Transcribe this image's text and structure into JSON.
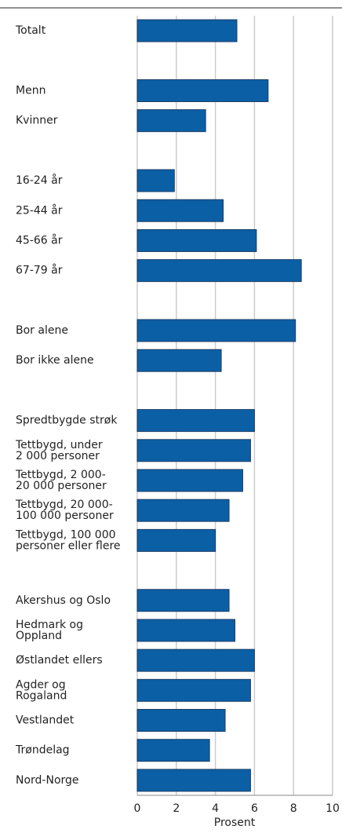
{
  "chart_data": {
    "type": "barh",
    "categories": [
      "Totalt",
      null,
      "Menn",
      "Kvinner",
      null,
      "16-24 år",
      "25-44 år",
      "45-66 år",
      "67-79 år",
      null,
      "Bor alene",
      "Bor ikke alene",
      null,
      "Spredtbygde strøk",
      "Tettbygd, under\n2 000 personer",
      "Tettbygd, 2 000-\n20 000 personer",
      "Tettbygd, 20 000-\n100 000 personer",
      "Tettbygd, 100 000\npersoner eller flere",
      null,
      "Akershus og Oslo",
      "Hedmark og\nOppland",
      "Østlandet ellers",
      "Agder og\nRogaland",
      "Vestlandet",
      "Trøndelag",
      "Nord-Norge"
    ],
    "values": [
      5.1,
      null,
      6.7,
      3.5,
      null,
      1.9,
      4.4,
      6.1,
      8.4,
      null,
      8.1,
      4.3,
      null,
      6.0,
      5.8,
      5.4,
      4.7,
      4.0,
      null,
      4.7,
      5.0,
      6.0,
      5.8,
      4.5,
      3.7,
      5.8
    ],
    "color": "#0b5fa5",
    "xlim": [
      0,
      10
    ],
    "xticks": [
      0,
      2,
      4,
      6,
      8,
      10
    ],
    "xlabel": "Prosent",
    "grid": true
  }
}
